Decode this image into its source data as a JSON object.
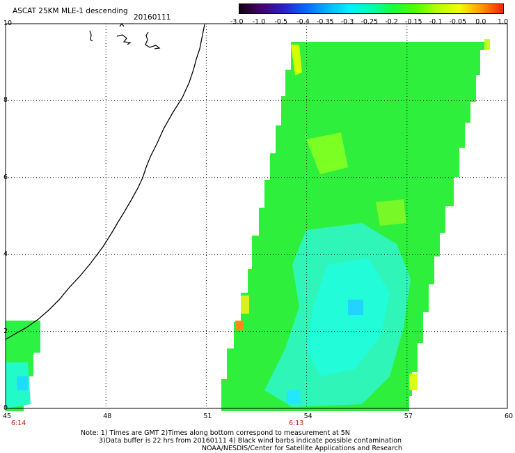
{
  "header": {
    "title": "ASCAT 25KM MLE-1 descending",
    "date": "20160111"
  },
  "colorbar": {
    "labels": [
      "-3.0",
      "-1.0",
      "-0.5",
      "-0.4",
      "-0.35",
      "-0.3",
      "-0.25",
      "-0.2",
      "-0.15",
      "-0.1",
      "-0.05",
      "0.0",
      "1.0"
    ],
    "colors": [
      "#140014",
      "#48006a",
      "#2a1ec8",
      "#0a64ff",
      "#00b4ff",
      "#00f0ff",
      "#00ffb4",
      "#18ff3c",
      "#4eff00",
      "#b4ff00",
      "#f0ff00",
      "#ff9a00",
      "#ff1e00"
    ]
  },
  "map": {
    "x_ticks": [
      "45",
      "48",
      "51",
      "54",
      "57",
      "60"
    ],
    "y_ticks": [
      "0",
      "2",
      "4",
      "6",
      "8",
      "10"
    ],
    "lon_range": [
      45,
      60
    ],
    "lat_range": [
      0,
      10
    ],
    "times": [
      {
        "label": "6:14",
        "lon": 45
      },
      {
        "label": "6:13",
        "lon": 53.3
      }
    ],
    "coastline_color": "#000000",
    "grid": "dotted"
  },
  "notes": {
    "line1": "Note: 1) Times are GMT 2)Times along bottom correspond to measurement at 5N",
    "line2": "3)Data buffer is 22 hrs from 20160111 4) Black wind barbs indicate possible contamination",
    "line3": "NOAA/NESDIS/Center for Satellite Applications and Research"
  }
}
